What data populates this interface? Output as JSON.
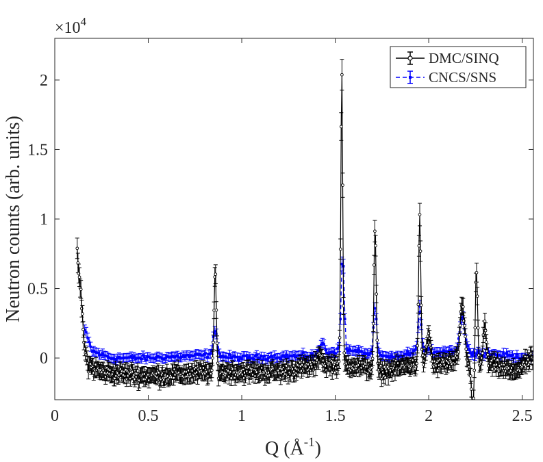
{
  "chart_data": {
    "type": "line",
    "title": "",
    "xlabel_base": "Q (Å",
    "xlabel_exp": "-1",
    "xlabel_close": ")",
    "ylabel": "Neutron counts (arb. units)",
    "y_multiplier_base": "×10",
    "y_multiplier_exp": "4",
    "xlim": [
      0,
      2.56
    ],
    "ylim": [
      -0.3,
      2.3
    ],
    "xticks": [
      0,
      0.5,
      1,
      1.5,
      2,
      2.5
    ],
    "xtick_labels": [
      "0",
      "0.5",
      "1",
      "1.5",
      "2",
      "2.5"
    ],
    "yticks": [
      0,
      0.5,
      1,
      1.5,
      2
    ],
    "ytick_labels": [
      "0",
      "0.5",
      "1",
      "1.5",
      "2"
    ],
    "grid": false,
    "legend_position": "top-right",
    "series": [
      {
        "name": "DMC/SINQ",
        "color": "#000000",
        "marker": "open-circle",
        "x_start": 0.12,
        "x_end": 2.56,
        "x_step": 0.004,
        "baseline": [
          [
            0.12,
            0.75
          ],
          [
            0.14,
            0.45
          ],
          [
            0.16,
            0.05
          ],
          [
            0.18,
            -0.05
          ],
          [
            0.25,
            -0.1
          ],
          [
            0.5,
            -0.13
          ],
          [
            0.85,
            -0.1
          ],
          [
            1.0,
            -0.1
          ],
          [
            1.2,
            -0.1
          ],
          [
            1.4,
            -0.05
          ],
          [
            1.5,
            -0.05
          ],
          [
            1.6,
            -0.05
          ],
          [
            1.75,
            -0.1
          ],
          [
            1.9,
            -0.05
          ],
          [
            2.05,
            -0.05
          ],
          [
            2.15,
            -0.02
          ],
          [
            2.22,
            -0.05
          ],
          [
            2.35,
            -0.05
          ],
          [
            2.45,
            -0.1
          ],
          [
            2.56,
            0.0
          ]
        ],
        "peaks": [
          [
            0.858,
            0.73,
            0.006
          ],
          [
            1.42,
            0.08,
            0.01
          ],
          [
            1.535,
            2.1,
            0.005
          ],
          [
            1.713,
            1.02,
            0.006
          ],
          [
            1.952,
            1.05,
            0.006
          ],
          [
            2.0,
            0.22,
            0.01
          ],
          [
            2.18,
            0.4,
            0.012
          ],
          [
            2.255,
            0.68,
            0.006
          ],
          [
            2.3,
            0.3,
            0.008
          ]
        ],
        "dips": [
          [
            2.235,
            -0.32,
            0.007
          ]
        ]
      },
      {
        "name": "CNCS/SNS",
        "color": "#0000ff",
        "marker": "filled-square",
        "x_start": 0.16,
        "x_end": 2.56,
        "x_step": 0.008,
        "baseline": [
          [
            0.16,
            0.2
          ],
          [
            0.2,
            0.05
          ],
          [
            0.3,
            0.0
          ],
          [
            0.5,
            0.0
          ],
          [
            0.8,
            0.02
          ],
          [
            1.0,
            0.0
          ],
          [
            1.4,
            0.02
          ],
          [
            1.5,
            0.05
          ],
          [
            1.6,
            0.05
          ],
          [
            1.8,
            0.0
          ],
          [
            1.95,
            0.05
          ],
          [
            2.15,
            0.05
          ],
          [
            2.56,
            0.0
          ]
        ],
        "peaks": [
          [
            0.858,
            0.2,
            0.01
          ],
          [
            1.43,
            0.08,
            0.012
          ],
          [
            1.54,
            0.7,
            0.008
          ],
          [
            1.713,
            0.35,
            0.008
          ],
          [
            1.952,
            0.32,
            0.008
          ],
          [
            2.18,
            0.25,
            0.014
          ]
        ],
        "dips": []
      }
    ]
  }
}
